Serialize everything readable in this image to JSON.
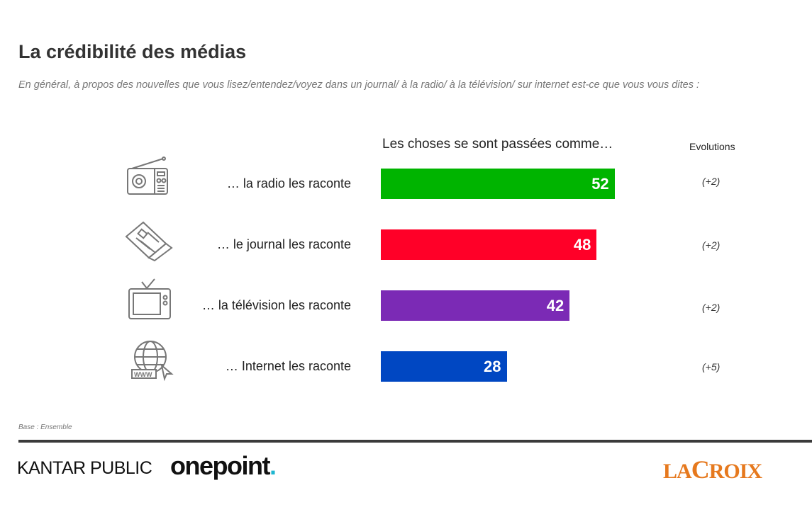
{
  "header": {
    "title": "La crédibilité des médias",
    "subtitle": "En général, à propos des nouvelles que vous lisez/entendez/voyez dans un journal/ à la radio/ à la télévision/ sur internet est-ce que vous vous dites :"
  },
  "chart_data": {
    "type": "bar",
    "orientation": "horizontal",
    "title": "Les choses se sont passées comme…",
    "evolutions_header": "Evolutions",
    "categories": [
      "… la radio les raconte",
      "… le journal les raconte",
      "… la télévision les raconte",
      "… Internet les raconte"
    ],
    "values": [
      52,
      48,
      42,
      28
    ],
    "evolutions": [
      "(+2)",
      "(+2)",
      "(+2)",
      "(+5)"
    ],
    "colors": [
      "#00b400",
      "#ff0028",
      "#7b2ab5",
      "#0047c2"
    ],
    "icons": [
      "radio-icon",
      "newspaper-icon",
      "television-icon",
      "internet-globe-icon"
    ]
  },
  "footer": {
    "base": "Base : Ensemble",
    "logos": {
      "kantar": "KANTAR PUBLIC",
      "onepoint": "onepoint",
      "onepoint_dot": ".",
      "lacroix": "LA CROIX"
    }
  }
}
